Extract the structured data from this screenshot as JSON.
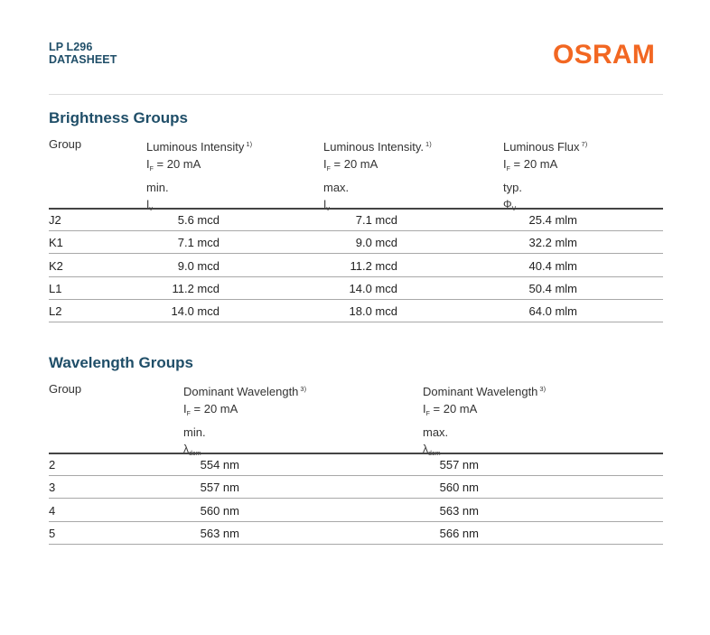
{
  "header": {
    "product": "LP L296",
    "doc_type": "DATASHEET",
    "logo": "OSRAM",
    "logo_color": "#f26722",
    "title_color": "#1f4e68"
  },
  "brightness": {
    "title": "Brightness Groups",
    "columns": [
      {
        "label": "Group"
      },
      {
        "label": "Luminous Intensity",
        "note": "1)",
        "cond_symbol": "I",
        "cond_sub": "F",
        "cond_value": " = 20 mA",
        "limit": "min.",
        "symbol": "I",
        "symbol_sub": "v"
      },
      {
        "label": "Luminous Intensity.",
        "note": "1)",
        "cond_symbol": "I",
        "cond_sub": "F",
        "cond_value": " = 20 mA",
        "limit": "max.",
        "symbol": "I",
        "symbol_sub": "v"
      },
      {
        "label": "Luminous Flux",
        "note": "7)",
        "cond_symbol": "I",
        "cond_sub": "F",
        "cond_value": " = 20 mA",
        "limit": "typ.",
        "symbol": "Φ",
        "symbol_sub": "V"
      }
    ],
    "rows": [
      [
        "J2",
        "5.6 mcd",
        "7.1 mcd",
        "25.4 mlm"
      ],
      [
        "K1",
        "7.1 mcd",
        "9.0 mcd",
        "32.2 mlm"
      ],
      [
        "K2",
        "9.0 mcd",
        "11.2 mcd",
        "40.4 mlm"
      ],
      [
        "L1",
        "11.2 mcd",
        "14.0 mcd",
        "50.4 mlm"
      ],
      [
        "L2",
        "14.0 mcd",
        "18.0 mcd",
        "64.0 mlm"
      ]
    ]
  },
  "wavelength": {
    "title": "Wavelength Groups",
    "columns": [
      {
        "label": "Group"
      },
      {
        "label": "Dominant Wavelength",
        "note": "3)",
        "cond_symbol": "I",
        "cond_sub": "F",
        "cond_value": " = 20 mA",
        "limit": "min.",
        "symbol": "λ",
        "symbol_sub": "dom"
      },
      {
        "label": "Dominant Wavelength",
        "note": "3)",
        "cond_symbol": "I",
        "cond_sub": "F",
        "cond_value": " = 20 mA",
        "limit": "max.",
        "symbol": "λ",
        "symbol_sub": "dom"
      }
    ],
    "rows": [
      [
        "2",
        "554 nm",
        "557 nm"
      ],
      [
        "3",
        "557 nm",
        "560 nm"
      ],
      [
        "4",
        "560 nm",
        "563 nm"
      ],
      [
        "5",
        "563 nm",
        "566 nm"
      ]
    ]
  }
}
